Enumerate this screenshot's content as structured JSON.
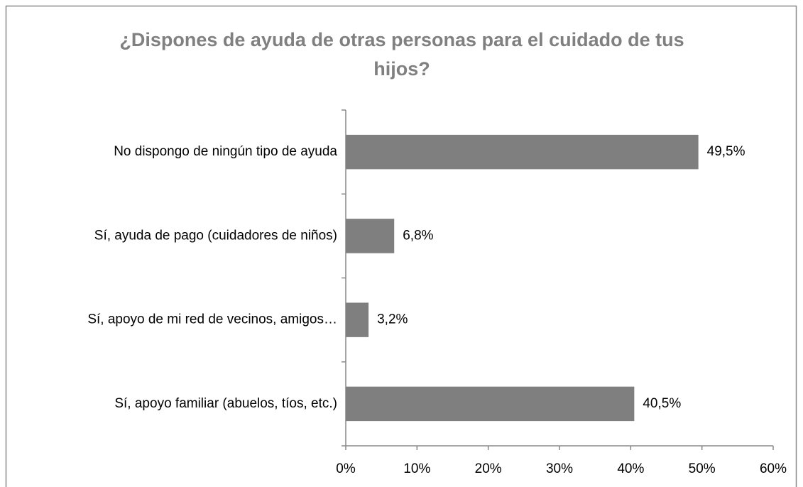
{
  "chart_data": {
    "type": "bar",
    "orientation": "horizontal",
    "title": "¿Dispones de ayuda de otras personas para el cuidado de tus hijos?",
    "categories": [
      "No dispongo de ningún tipo de ayuda",
      "Sí, ayuda de pago (cuidadores de niños)",
      "Sí, apoyo de mi red de vecinos, amigos…",
      "Sí, apoyo familiar (abuelos, tíos, etc.)"
    ],
    "values": [
      49.5,
      6.8,
      3.2,
      40.5
    ],
    "value_labels": [
      "49,5%",
      "6,8%",
      "3,2%",
      "40,5%"
    ],
    "color": "#7f7f7f",
    "xlim": [
      0,
      60
    ],
    "xticks": [
      {
        "value": 0,
        "label": "0%"
      },
      {
        "value": 10,
        "label": "10%"
      },
      {
        "value": 20,
        "label": "20%"
      },
      {
        "value": 30,
        "label": "30%"
      },
      {
        "value": 40,
        "label": "40%"
      },
      {
        "value": 50,
        "label": "50%"
      },
      {
        "value": 60,
        "label": "60%"
      }
    ],
    "grid": false
  }
}
